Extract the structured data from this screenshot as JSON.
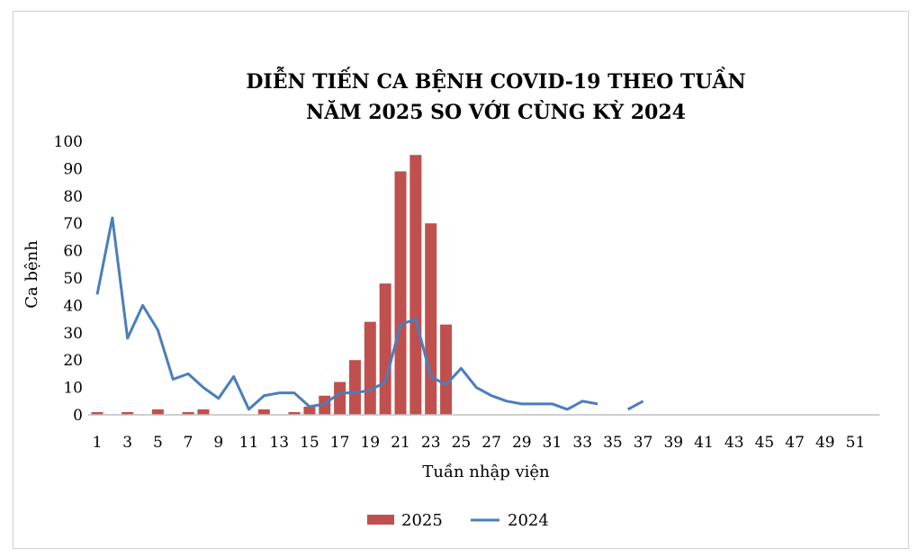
{
  "chart_data": {
    "type": "bar",
    "title_line1": "DIỄN TIẾN CA BỆNH COVID-19 THEO TUẦN",
    "title_line2": "NĂM 2025 SO VỚI CÙNG KỲ 2024",
    "xlabel": "Tuần nhập viện",
    "ylabel": "Ca bệnh",
    "ylim": [
      0,
      100
    ],
    "y_ticks": [
      0,
      10,
      20,
      30,
      40,
      50,
      60,
      70,
      80,
      90,
      100
    ],
    "x_tick_labels": [
      "1",
      "3",
      "5",
      "7",
      "9",
      "11",
      "13",
      "15",
      "17",
      "19",
      "21",
      "23",
      "25",
      "27",
      "29",
      "31",
      "33",
      "35",
      "37",
      "39",
      "41",
      "43",
      "45",
      "47",
      "49",
      "51"
    ],
    "weeks_total": 52,
    "legend_position": "bottom",
    "grid": false,
    "series": [
      {
        "name": "2025",
        "kind": "bar",
        "color": "#c0504d",
        "weeks": [
          1,
          3,
          5,
          7,
          8,
          12,
          14,
          15,
          16,
          17,
          18,
          19,
          20,
          21,
          22,
          23,
          24
        ],
        "values": [
          1,
          1,
          2,
          1,
          2,
          2,
          1,
          3,
          7,
          12,
          20,
          34,
          48,
          89,
          95,
          70,
          33
        ]
      },
      {
        "name": "2024",
        "kind": "line",
        "color": "#4a7ebb",
        "segments": [
          {
            "weeks": [
              1,
              2,
              3,
              4,
              5,
              6,
              7,
              8,
              9,
              10,
              11,
              12,
              13,
              14,
              15,
              16,
              17,
              18,
              19,
              20,
              21,
              22,
              23,
              24,
              25,
              26,
              27,
              28,
              29,
              30,
              31,
              32,
              33,
              34
            ],
            "values": [
              44,
              72,
              28,
              40,
              31,
              13,
              15,
              10,
              6,
              14,
              2,
              7,
              8,
              8,
              3,
              4,
              8,
              8,
              9,
              12,
              33,
              35,
              14,
              11,
              17,
              10,
              7,
              5,
              4,
              4,
              4,
              2,
              5,
              4
            ]
          },
          {
            "weeks": [
              36,
              37
            ],
            "values": [
              2,
              5
            ]
          }
        ]
      }
    ]
  }
}
